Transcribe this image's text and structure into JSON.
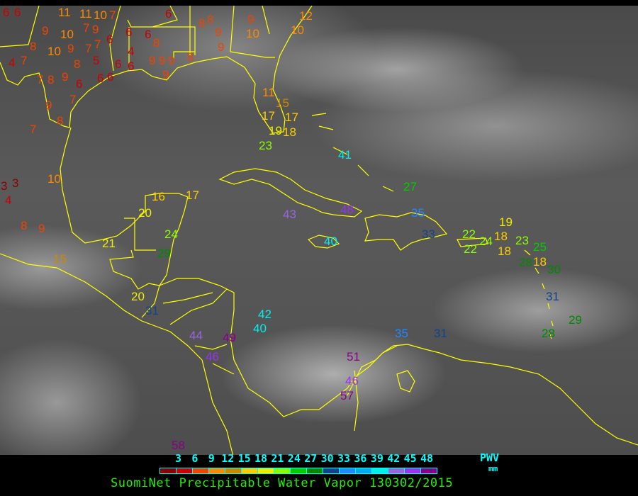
{
  "legend": {
    "ticks": [
      "3",
      "6",
      "9",
      "12",
      "15",
      "18",
      "21",
      "24",
      "27",
      "30",
      "33",
      "36",
      "39",
      "42",
      "45",
      "48"
    ],
    "unit_label": "PWV",
    "unit": "mm",
    "colors": [
      "#8b0000",
      "#cc0000",
      "#ee4400",
      "#ff8800",
      "#cc8800",
      "#ffcc00",
      "#eeee00",
      "#88ff00",
      "#00cc00",
      "#008800",
      "#114488",
      "#2288ff",
      "#00aaee",
      "#00eeee",
      "#9966dd",
      "#9933ee",
      "#880088"
    ]
  },
  "caption": "SuomiNet Precipitable Water Vapor 130302/2015",
  "map": {
    "coastline_color": "#ffff00"
  },
  "stations": [
    "6",
    "6",
    "11",
    "11",
    "10",
    "7",
    "9",
    "10",
    "6",
    "9",
    "7",
    "6",
    "4",
    "6",
    "8",
    "10",
    "9",
    "7",
    "4",
    "7",
    "8",
    "5",
    "6",
    "6",
    "7",
    "8",
    "9",
    "6",
    "6",
    "6",
    "9",
    "8",
    "7",
    "7",
    "6",
    "8",
    "9",
    "9",
    "9",
    "9",
    "8",
    "7",
    "8",
    "8",
    "9",
    "9",
    "9",
    "10",
    "12",
    "10",
    "11",
    "15",
    "17",
    "17",
    "19",
    "18",
    "23",
    "41",
    "10",
    "3",
    "3",
    "4",
    "8",
    "9",
    "15",
    "16",
    "17",
    "20",
    "24",
    "21",
    "29",
    "20",
    "31",
    "44",
    "49",
    "46",
    "42",
    "40",
    "43",
    "48",
    "40",
    "27",
    "35",
    "33",
    "22",
    "22",
    "24",
    "18",
    "19",
    "18",
    "23",
    "25",
    "18",
    "28",
    "30",
    "31",
    "29",
    "28",
    "35",
    "31",
    "51",
    "46",
    "57",
    "58"
  ]
}
